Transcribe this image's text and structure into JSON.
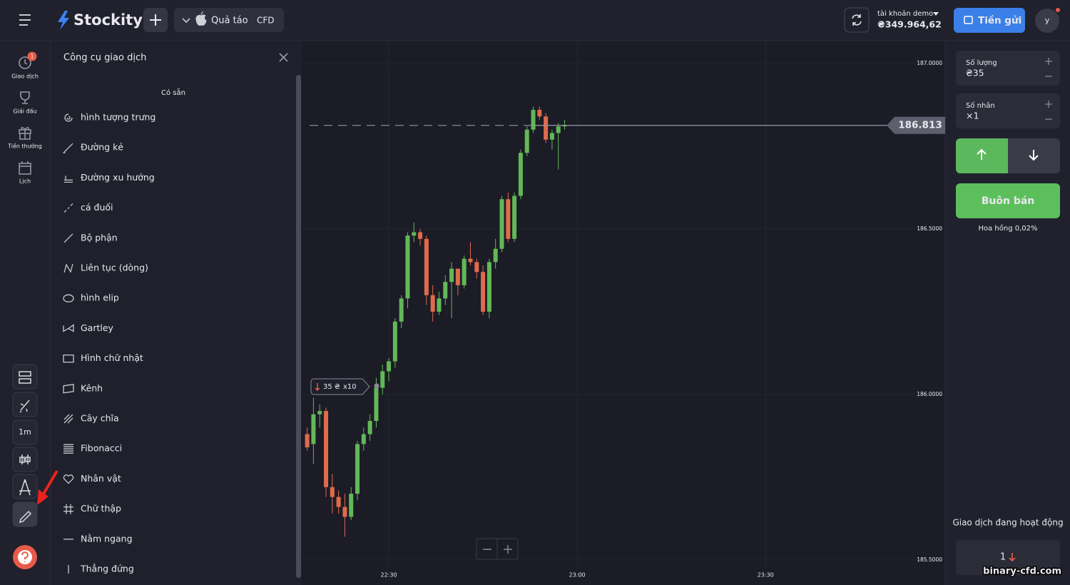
{
  "header": {
    "brand": "Stockity",
    "asset": "Quả táo",
    "asset_type": "CFD",
    "account_label": "tài khoản demo",
    "balance": "₴349.964,62",
    "deposit": "Tiền gửi",
    "avatar": "y"
  },
  "sidebar": {
    "items": [
      {
        "label": "Giao dịch",
        "badge": "1"
      },
      {
        "label": "Giải đấu"
      },
      {
        "label": "Tiền thưởng"
      },
      {
        "label": "Lịch"
      }
    ],
    "timeframe": "1m"
  },
  "panel": {
    "title": "Công cụ giao dịch",
    "section": "Có sẵn",
    "tools": [
      "hình tượng trưng",
      "Đường kẻ",
      "Đường xu hướng",
      "cá đuối",
      "Bộ phận",
      "Liên tục (dòng)",
      "hình elip",
      "Gartley",
      "Hình chữ nhật",
      "Kênh",
      "Cây chĩa",
      "Fibonacci",
      "Nhân vật",
      "Chữ thập",
      "Nằm ngang",
      "Thẳng đứng"
    ]
  },
  "chart_data": {
    "type": "candlestick",
    "x": [
      17,
      18,
      19,
      20,
      21,
      22,
      23,
      24,
      25,
      26,
      27,
      28,
      29,
      30,
      31,
      32,
      33,
      34,
      35,
      36,
      37,
      38,
      39,
      40,
      41,
      42,
      43,
      44,
      45,
      46,
      47,
      48,
      49,
      50,
      51,
      52,
      53,
      54,
      55,
      56,
      57,
      58
    ],
    "open": [
      185.88,
      185.85,
      185.94,
      185.95,
      185.72,
      185.69,
      185.66,
      185.63,
      185.7,
      185.85,
      185.88,
      185.92,
      186.02,
      186.07,
      186.1,
      186.22,
      186.29,
      186.48,
      186.49,
      186.47,
      186.3,
      186.25,
      186.29,
      186.34,
      186.38,
      186.33,
      186.41,
      186.4,
      186.37,
      186.25,
      186.4,
      186.44,
      186.59,
      186.47,
      186.6,
      186.73,
      186.8,
      186.86,
      186.84,
      186.77,
      186.79,
      186.81
    ],
    "high": [
      185.9,
      185.99,
      185.97,
      185.96,
      185.76,
      185.71,
      185.7,
      185.72,
      185.86,
      185.9,
      185.94,
      186.05,
      186.09,
      186.11,
      186.23,
      186.3,
      186.49,
      186.52,
      186.5,
      186.48,
      186.33,
      186.31,
      186.36,
      186.4,
      186.38,
      186.42,
      186.46,
      186.41,
      186.39,
      186.41,
      186.47,
      186.6,
      186.61,
      186.61,
      186.74,
      186.81,
      186.87,
      186.87,
      186.85,
      186.8,
      186.82,
      186.83
    ],
    "low": [
      185.83,
      185.79,
      185.9,
      185.69,
      185.64,
      185.64,
      185.57,
      185.62,
      185.68,
      185.83,
      185.86,
      185.9,
      186.0,
      186.04,
      186.08,
      186.2,
      186.26,
      186.46,
      186.45,
      186.27,
      186.22,
      186.24,
      186.27,
      186.23,
      186.3,
      186.32,
      186.39,
      186.35,
      186.24,
      186.23,
      186.38,
      186.43,
      186.46,
      186.46,
      186.59,
      186.72,
      186.79,
      186.83,
      186.76,
      186.74,
      186.68,
      186.8
    ],
    "close": [
      185.84,
      185.94,
      185.95,
      185.72,
      185.69,
      185.66,
      185.63,
      185.7,
      185.85,
      185.88,
      185.92,
      186.02,
      186.07,
      186.1,
      186.22,
      186.29,
      186.48,
      186.49,
      186.47,
      186.3,
      186.25,
      186.29,
      186.34,
      186.38,
      186.33,
      186.41,
      186.4,
      186.37,
      186.25,
      186.4,
      186.44,
      186.59,
      186.47,
      186.6,
      186.73,
      186.8,
      186.86,
      186.84,
      186.77,
      186.79,
      186.81,
      186.813
    ],
    "up_color": "#62b857",
    "down_color": "#e06b4c",
    "current_price": 186.813,
    "xlim": [
      16.25,
      118.6
    ],
    "xticks": [
      {
        "value": 30,
        "label": "22:30"
      },
      {
        "value": 60,
        "label": "23:00"
      },
      {
        "value": 90,
        "label": "23:30"
      }
    ],
    "ylim": [
      185.478,
      187.069
    ],
    "yticks": [
      {
        "value": 185.5,
        "label": "185.5000"
      },
      {
        "value": 186,
        "label": "186.0000"
      },
      {
        "value": 186.5,
        "label": "186.5000"
      },
      {
        "value": 187,
        "label": "187.0000"
      }
    ],
    "grid": true,
    "trade_marker": {
      "amount": "35 ₴",
      "multiplier": "x10"
    }
  },
  "trade": {
    "amount_label": "Số lượng",
    "amount": "₴35",
    "multiplier_label": "Số nhân",
    "multiplier": "×1",
    "trade_button": "Buôn bán",
    "commission": "Hoa hồng 0,02%",
    "active_label": "Giao dịch đang hoạt động",
    "active_count": "1"
  },
  "watermark": "binary-cfd.com"
}
